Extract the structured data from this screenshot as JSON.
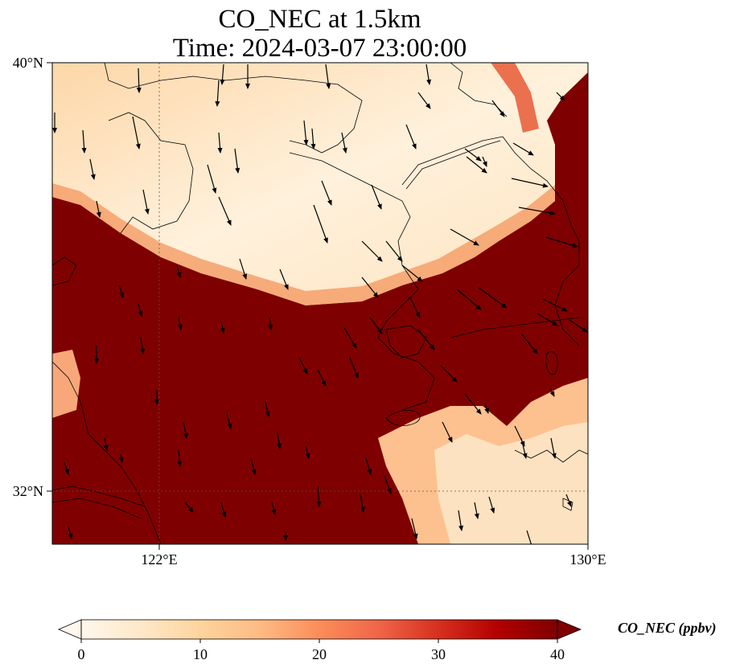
{
  "title": {
    "line1": "CO_NEC at 1.5km",
    "line2": "Time: 2024-03-07 23:00:00"
  },
  "map": {
    "lat_range": [
      31.2,
      40.0
    ],
    "lon_range": [
      120.0,
      130.0
    ],
    "lat_ticks": [
      {
        "label": "40°N",
        "value": 40.0
      },
      {
        "label": "32°N",
        "value": 32.0
      }
    ],
    "lon_ticks": [
      {
        "label": "122°E",
        "value": 122.0
      },
      {
        "label": "130°E",
        "value": 130.0
      }
    ],
    "gridlines": "dotted at 122°E and 32°N",
    "features": [
      "coastlines",
      "country borders",
      "wind vectors"
    ],
    "field_description_regions": {
      "low_co_plume": "clean air band from Bohai Sea / Liaodong across Yellow Sea north, values 0-15 ppbv",
      "high_co": "saturated (>40 ppbv) over east China plain, Yellow Sea south and Korean Peninsula east"
    },
    "wind_direction": "predominantly northerly to north-northwesterly"
  },
  "colorbar": {
    "label": "CO_NEC (ppbv)",
    "colormap": "OrRd",
    "min": 0,
    "max": 40,
    "extend": "both",
    "ticks": [
      {
        "label": "0",
        "value": 0
      },
      {
        "label": "10",
        "value": 10
      },
      {
        "label": "20",
        "value": 20
      },
      {
        "label": "30",
        "value": 30
      },
      {
        "label": "40",
        "value": 40
      }
    ],
    "colors": [
      "#fff7ec",
      "#fee8c8",
      "#fdd49e",
      "#fdbb84",
      "#fc8d59",
      "#ef6548",
      "#d7301f",
      "#b30000",
      "#7f0000"
    ]
  }
}
